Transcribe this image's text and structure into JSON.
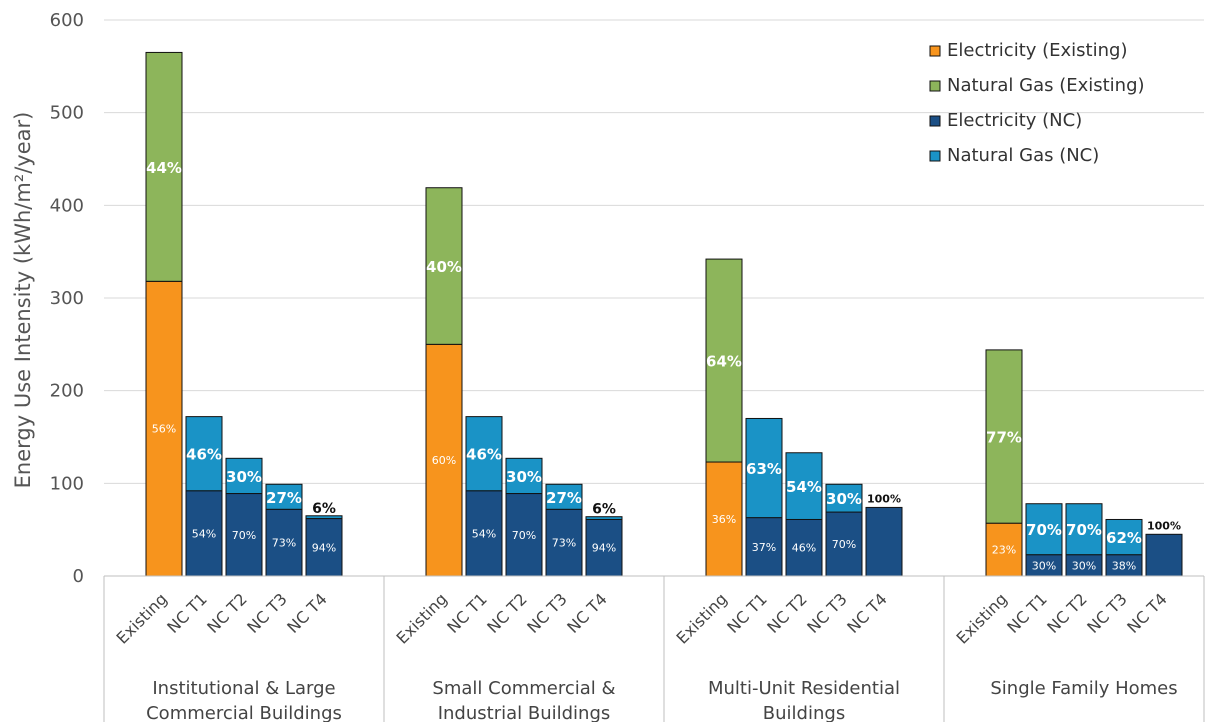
{
  "chart_data": {
    "type": "bar",
    "stacked": true,
    "title": "",
    "ylabel": "Energy Use Intensity (kWh/m²/year)",
    "ylim": [
      0,
      600
    ],
    "yticks": [
      0,
      100,
      200,
      300,
      400,
      500,
      600
    ],
    "grid": true,
    "legend_position": "top-right",
    "series_info": [
      {
        "name": "Electricity (Existing)",
        "color": "#F7941D"
      },
      {
        "name": "Natural Gas (Existing)",
        "color": "#8DB55B"
      },
      {
        "name": "Electricity (NC)",
        "color": "#1B4F85"
      },
      {
        "name": "Natural Gas (NC)",
        "color": "#1A93C6"
      }
    ],
    "groups": [
      {
        "label_lines": [
          "Institutional & Large",
          "Commercial Buildings"
        ],
        "bars": [
          {
            "label": "Existing",
            "kind": "existing",
            "elec": 318,
            "gas": 247,
            "elec_pct": "56%",
            "gas_pct": "44%"
          },
          {
            "label": "NC T1",
            "kind": "nc",
            "elec": 92,
            "gas": 80,
            "elec_pct": "54%",
            "gas_pct": "46%"
          },
          {
            "label": "NC T2",
            "kind": "nc",
            "elec": 89,
            "gas": 38,
            "elec_pct": "70%",
            "gas_pct": "30%"
          },
          {
            "label": "NC T3",
            "kind": "nc",
            "elec": 72,
            "gas": 27,
            "elec_pct": "73%",
            "gas_pct": "27%"
          },
          {
            "label": "NC T4",
            "kind": "nc",
            "elec": 62,
            "gas": 3,
            "elec_pct": "94%",
            "gas_pct": "6%"
          }
        ]
      },
      {
        "label_lines": [
          "Small Commercial &",
          "Industrial Buildings"
        ],
        "bars": [
          {
            "label": "Existing",
            "kind": "existing",
            "elec": 250,
            "gas": 169,
            "elec_pct": "60%",
            "gas_pct": "40%"
          },
          {
            "label": "NC T1",
            "kind": "nc",
            "elec": 92,
            "gas": 80,
            "elec_pct": "54%",
            "gas_pct": "46%"
          },
          {
            "label": "NC T2",
            "kind": "nc",
            "elec": 89,
            "gas": 38,
            "elec_pct": "70%",
            "gas_pct": "30%"
          },
          {
            "label": "NC T3",
            "kind": "nc",
            "elec": 72,
            "gas": 27,
            "elec_pct": "73%",
            "gas_pct": "27%"
          },
          {
            "label": "NC T4",
            "kind": "nc",
            "elec": 61,
            "gas": 3,
            "elec_pct": "94%",
            "gas_pct": "6%"
          }
        ]
      },
      {
        "label_lines": [
          "Multi-Unit Residential",
          "Buildings"
        ],
        "bars": [
          {
            "label": "Existing",
            "kind": "existing",
            "elec": 123,
            "gas": 219,
            "elec_pct": "36%",
            "gas_pct": "64%"
          },
          {
            "label": "NC T1",
            "kind": "nc",
            "elec": 63,
            "gas": 107,
            "elec_pct": "37%",
            "gas_pct": "63%"
          },
          {
            "label": "NC T2",
            "kind": "nc",
            "elec": 61,
            "gas": 72,
            "elec_pct": "46%",
            "gas_pct": "54%"
          },
          {
            "label": "NC T3",
            "kind": "nc",
            "elec": 69,
            "gas": 30,
            "elec_pct": "70%",
            "gas_pct": "30%"
          },
          {
            "label": "NC T4",
            "kind": "nc",
            "elec": 74,
            "gas": 0,
            "elec_pct": "",
            "gas_pct": "",
            "total_pct": "100%"
          }
        ]
      },
      {
        "label_lines": [
          "Single Family Homes"
        ],
        "bars": [
          {
            "label": "Existing",
            "kind": "existing",
            "elec": 57,
            "gas": 187,
            "elec_pct": "23%",
            "gas_pct": "77%"
          },
          {
            "label": "NC T1",
            "kind": "nc",
            "elec": 23,
            "gas": 55,
            "elec_pct": "30%",
            "gas_pct": "70%"
          },
          {
            "label": "NC T2",
            "kind": "nc",
            "elec": 23,
            "gas": 55,
            "elec_pct": "30%",
            "gas_pct": "70%"
          },
          {
            "label": "NC T3",
            "kind": "nc",
            "elec": 23,
            "gas": 38,
            "elec_pct": "38%",
            "gas_pct": "62%"
          },
          {
            "label": "NC T4",
            "kind": "nc",
            "elec": 45,
            "gas": 0,
            "elec_pct": "",
            "gas_pct": "",
            "total_pct": "100%"
          }
        ]
      }
    ]
  }
}
